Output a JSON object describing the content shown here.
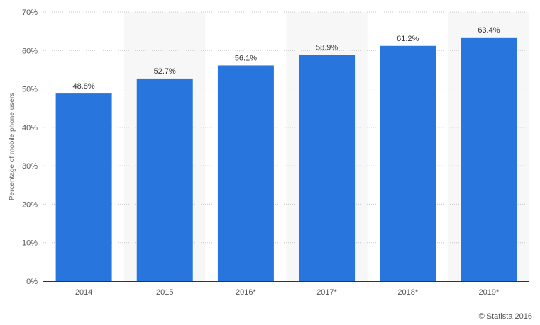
{
  "chart_data": {
    "type": "bar",
    "categories": [
      "2014",
      "2015",
      "2016*",
      "2017*",
      "2018*",
      "2019*"
    ],
    "values": [
      48.8,
      52.7,
      56.1,
      58.9,
      61.2,
      63.4
    ],
    "value_labels": [
      "48.8%",
      "52.7%",
      "56.1%",
      "58.9%",
      "61.2%",
      "63.4%"
    ],
    "ylabel": "Percentage of mobile phone users",
    "ylim": [
      0,
      70
    ],
    "yticks": [
      0,
      10,
      20,
      30,
      40,
      50,
      60,
      70
    ],
    "ytick_labels": [
      "0%",
      "10%",
      "20%",
      "30%",
      "40%",
      "50%",
      "60%",
      "70%"
    ],
    "grid": true,
    "bar_color": "#2876dd",
    "alt_band_color": "#f7f7f7"
  },
  "credit": "© Statista 2016"
}
